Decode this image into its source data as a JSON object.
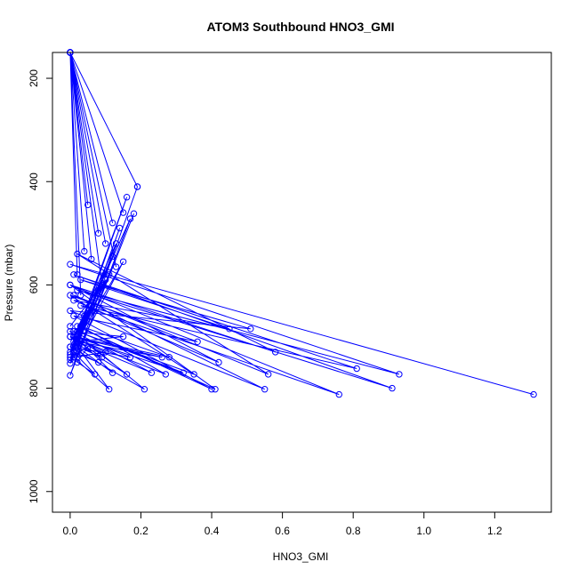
{
  "chart_data": {
    "type": "line",
    "title": "ATOM3 Southbound HNO3_GMI",
    "xlabel": "HNO3_GMI",
    "ylabel": "Pressure (mbar)",
    "xlim": [
      -0.05,
      1.36
    ],
    "ylim": [
      1040,
      150
    ],
    "y_reversed": true,
    "x_ticks": [
      0.0,
      0.2,
      0.4,
      0.6,
      0.8,
      1.0,
      1.2
    ],
    "x_tick_labels": [
      "0.0",
      "0.2",
      "0.4",
      "0.6",
      "0.8",
      "1.0",
      "1.2"
    ],
    "y_ticks": [
      200,
      400,
      600,
      800,
      1000
    ],
    "y_tick_labels": [
      "200",
      "400",
      "600",
      "800",
      "1000"
    ],
    "series_color": "#0000ff",
    "marker": "open-circle",
    "grid": false,
    "legend": "none",
    "series": [
      {
        "x": [
          0.19,
          0.0,
          0.18,
          0.02,
          0.17,
          0.0,
          0.16,
          0.01,
          0.15,
          0.0,
          0.14,
          0.02,
          0.13,
          0.01,
          0.12,
          0.0,
          0.11,
          0.02,
          0.1,
          0.01,
          0.09,
          0.0,
          0.08,
          0.02,
          0.07,
          0.0,
          0.06,
          0.01,
          0.05,
          0.0,
          0.04,
          0.02,
          0.03,
          0.01
        ],
        "y": [
          410,
          775,
          462,
          740,
          472,
          730,
          430,
          720,
          555,
          752,
          490,
          720,
          520,
          700,
          545,
          735,
          580,
          712,
          590,
          700,
          600,
          680,
          610,
          690,
          625,
          720,
          640,
          700,
          655,
          745,
          660,
          730,
          680,
          720
        ]
      },
      {
        "x": [
          1.31,
          0.0,
          0.93,
          0.02,
          0.91,
          0.01,
          0.81,
          0.03,
          0.76,
          0.0,
          0.58,
          0.02,
          0.56,
          0.01,
          0.55,
          0.0,
          0.51,
          0.03,
          0.45,
          0.01,
          0.42,
          0.0,
          0.41,
          0.02,
          0.4,
          0.01,
          0.36,
          0.0,
          0.35,
          0.02,
          0.32,
          0.01,
          0.28,
          0.03,
          0.27,
          0.0,
          0.26,
          0.02,
          0.23,
          0.01,
          0.21,
          0.0,
          0.17,
          0.02,
          0.16,
          0.01,
          0.15,
          0.0,
          0.12,
          0.02,
          0.11,
          0.01,
          0.1,
          0.0,
          0.09,
          0.02,
          0.08,
          0.01,
          0.07,
          0.0,
          0.05,
          0.02
        ],
        "y": [
          812,
          560,
          773,
          610,
          800,
          580,
          762,
          640,
          812,
          600,
          730,
          540,
          773,
          620,
          802,
          650,
          685,
          590,
          685,
          630,
          750,
          600,
          802,
          680,
          802,
          660,
          710,
          620,
          773,
          690,
          770,
          700,
          740,
          680,
          773,
          700,
          740,
          710,
          770,
          690,
          802,
          720,
          740,
          700,
          773,
          710,
          700,
          690,
          770,
          720,
          802,
          740,
          730,
          700,
          740,
          720,
          750,
          730,
          773,
          740,
          720,
          750
        ]
      },
      {
        "x": [
          0.0,
          0.19,
          0.0,
          0.05,
          0.0,
          0.15,
          0.0,
          0.12,
          0.0,
          0.08,
          0.0,
          0.1,
          0.0,
          0.04,
          0.0,
          0.06,
          0.0,
          0.13,
          0.0,
          0.02,
          0.0,
          0.09,
          0.0,
          0.03
        ],
        "y": [
          150,
          410,
          150,
          445,
          150,
          460,
          150,
          480,
          150,
          500,
          150,
          520,
          150,
          535,
          150,
          550,
          150,
          565,
          150,
          580,
          150,
          600,
          150,
          620
        ]
      }
    ]
  }
}
